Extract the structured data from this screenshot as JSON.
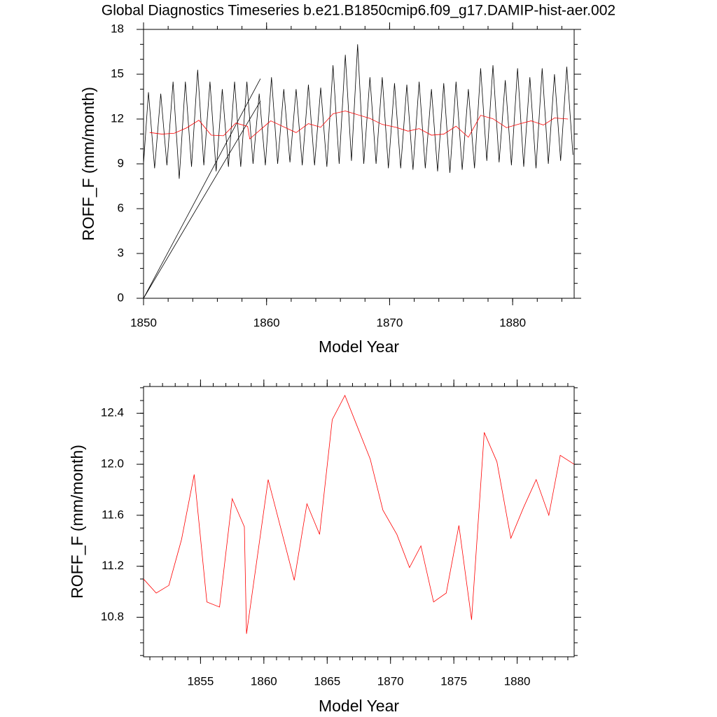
{
  "title": "Global Diagnostics Timeseries b.e21.B1850cmip6.f09_g17.DAMIP-hist-aer.002",
  "chart_data": [
    {
      "type": "line",
      "x_label": "Model Year",
      "y_label": "ROFF_F (mm/month)",
      "xlim": [
        1850,
        1885
      ],
      "xticks": [
        1850,
        1860,
        1870,
        1880
      ],
      "ylim": [
        0,
        18
      ],
      "yticks": [
        0,
        3,
        6,
        9,
        12,
        15,
        18
      ],
      "series": [
        {
          "color": "#000000",
          "x": [
            1850.0,
            1850.4,
            1850.9,
            1851.4,
            1851.9,
            1852.4,
            1852.9,
            1853.4,
            1853.9,
            1854.4,
            1854.9,
            1855.4,
            1855.9,
            1856.4,
            1856.9,
            1857.4,
            1857.9,
            1858.4,
            1858.9,
            1859.4,
            1859.9,
            1860.4,
            1860.9,
            1861.4,
            1861.9,
            1862.4,
            1862.9,
            1863.4,
            1863.9,
            1864.4,
            1864.9,
            1865.4,
            1865.9,
            1866.4,
            1866.9,
            1867.4,
            1867.9,
            1868.4,
            1868.9,
            1869.4,
            1869.9,
            1870.4,
            1870.9,
            1871.4,
            1871.9,
            1872.4,
            1872.9,
            1873.4,
            1873.9,
            1874.4,
            1874.9,
            1875.4,
            1875.9,
            1876.4,
            1876.9,
            1877.4,
            1877.9,
            1878.4,
            1878.9,
            1879.4,
            1879.9,
            1880.4,
            1880.9,
            1881.4,
            1881.9,
            1882.4,
            1882.9,
            1883.4,
            1883.9,
            1884.4,
            1884.9
          ],
          "values": [
            9.0,
            13.8,
            8.7,
            13.7,
            8.9,
            14.5,
            8.0,
            14.5,
            8.8,
            15.3,
            8.9,
            14.5,
            8.5,
            14.0,
            8.8,
            14.5,
            8.8,
            14.5,
            9.0,
            13.7,
            8.9,
            14.8,
            9.0,
            14.0,
            9.1,
            14.0,
            8.9,
            14.3,
            8.9,
            14.1,
            8.8,
            15.6,
            9.0,
            16.3,
            9.2,
            17.0,
            9.0,
            14.8,
            9.0,
            14.8,
            8.7,
            14.4,
            8.7,
            14.3,
            8.6,
            14.5,
            8.7,
            14.0,
            8.5,
            14.4,
            8.4,
            14.5,
            8.6,
            14.0,
            8.7,
            15.4,
            9.2,
            15.6,
            9.1,
            14.6,
            8.9,
            15.4,
            8.8,
            14.8,
            8.7,
            15.4,
            9.0,
            15.0,
            9.2,
            15.5,
            9.6
          ]
        },
        {
          "color": "#000000",
          "x": [
            1859.5,
            1850,
            1859.5
          ],
          "values": [
            13.2,
            0,
            14.7
          ]
        },
        {
          "color": "#ff0000",
          "x": [
            1850.5,
            1851.5,
            1852.5,
            1853.5,
            1854.5,
            1855.5,
            1856.5,
            1857.5,
            1858.46,
            1858.63,
            1860.34,
            1862.4,
            1863.4,
            1864.4,
            1865.4,
            1866.4,
            1868.4,
            1869.4,
            1870.5,
            1871.5,
            1872.4,
            1873.4,
            1874.4,
            1875.4,
            1876.4,
            1877.4,
            1878.4,
            1879.5,
            1880.5,
            1881.5,
            1882.5,
            1883.4,
            1884.5
          ],
          "values": [
            11.1,
            10.99,
            11.05,
            11.41,
            11.92,
            10.92,
            10.88,
            11.73,
            11.51,
            10.67,
            11.88,
            11.09,
            11.69,
            11.45,
            12.35,
            12.54,
            12.04,
            11.64,
            11.45,
            11.19,
            11.36,
            10.92,
            10.99,
            11.52,
            10.78,
            12.25,
            12.02,
            11.42,
            11.66,
            11.88,
            11.6,
            12.07,
            12.0
          ]
        }
      ]
    },
    {
      "type": "line",
      "x_label": "Model Year",
      "y_label": "ROFF_F (mm/month)",
      "xlim": [
        1850.5,
        1884.5
      ],
      "xticks": [
        1855,
        1860,
        1865,
        1870,
        1875,
        1880
      ],
      "ylim": [
        10.49,
        12.61
      ],
      "yticks": [
        10.8,
        11.2,
        11.6,
        {
          "value": 12,
          "label": "12.0"
        },
        12.4
      ],
      "series": [
        {
          "color": "#ff0000",
          "x": [
            1850.5,
            1851.5,
            1852.5,
            1853.5,
            1854.5,
            1855.5,
            1856.5,
            1857.5,
            1858.46,
            1858.63,
            1860.34,
            1862.4,
            1863.4,
            1864.4,
            1865.4,
            1866.4,
            1868.4,
            1869.4,
            1870.5,
            1871.5,
            1872.4,
            1873.4,
            1874.4,
            1875.4,
            1876.4,
            1877.4,
            1878.4,
            1879.5,
            1880.5,
            1881.5,
            1882.5,
            1883.4,
            1884.5
          ],
          "values": [
            11.1,
            10.99,
            11.05,
            11.41,
            11.92,
            10.92,
            10.88,
            11.73,
            11.51,
            10.67,
            11.88,
            11.09,
            11.69,
            11.45,
            12.35,
            12.54,
            12.04,
            11.64,
            11.45,
            11.19,
            11.36,
            10.92,
            10.99,
            11.52,
            10.78,
            12.25,
            12.02,
            11.42,
            11.66,
            11.88,
            11.6,
            12.07,
            12.0
          ]
        }
      ]
    }
  ]
}
